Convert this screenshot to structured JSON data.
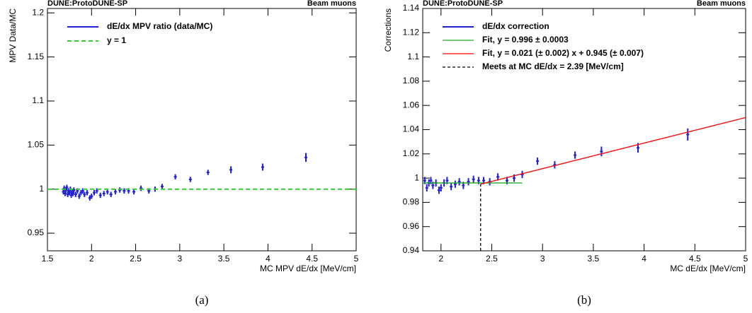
{
  "chart_data": [
    {
      "type": "scatter",
      "label_left": "DUNE:ProtoDUNE-SP",
      "label_right": "Beam muons",
      "x_label": "MC MPV dE/dx [MeV/cm]",
      "y_label": "MPV Data/MC",
      "caption": "(a)",
      "xlim": [
        1.5,
        5
      ],
      "xticks": [
        1.5,
        2,
        2.5,
        3,
        3.5,
        4,
        4.5,
        5
      ],
      "ylim": [
        0.93,
        1.205
      ],
      "yticks": [
        0.95,
        1,
        1.05,
        1.1,
        1.15,
        1.2
      ],
      "series": [
        {
          "name": "dE/dx MPV ratio (data/MC)",
          "color": "#1f1fd6",
          "style": "points",
          "x": [
            1.68,
            1.69,
            1.7,
            1.71,
            1.72,
            1.73,
            1.74,
            1.75,
            1.76,
            1.77,
            1.78,
            1.79,
            1.8,
            1.82,
            1.84,
            1.86,
            1.88,
            1.9,
            1.92,
            1.95,
            1.98,
            2.0,
            2.03,
            2.06,
            2.1,
            2.14,
            2.18,
            2.22,
            2.27,
            2.32,
            2.37,
            2.42,
            2.48,
            2.56,
            2.65,
            2.72,
            2.8,
            2.95,
            3.12,
            3.32,
            3.58,
            3.94,
            4.43
          ],
          "values": [
            0.997,
            1.001,
            0.995,
            0.999,
            1.002,
            0.994,
            0.998,
            0.996,
            1.0,
            0.993,
            0.997,
            0.995,
            0.999,
            0.994,
            0.998,
            0.992,
            0.996,
            0.998,
            0.994,
            0.996,
            0.99,
            0.992,
            0.996,
            0.998,
            0.993,
            0.995,
            0.997,
            0.994,
            0.997,
            0.999,
            0.998,
            0.998,
            0.997,
            1.001,
            0.998,
            1.0,
            1.003,
            1.014,
            1.011,
            1.019,
            1.022,
            1.025,
            1.036
          ],
          "errors": [
            0.003,
            0.003,
            0.003,
            0.003,
            0.003,
            0.003,
            0.003,
            0.003,
            0.003,
            0.003,
            0.003,
            0.003,
            0.003,
            0.003,
            0.003,
            0.003,
            0.003,
            0.003,
            0.003,
            0.003,
            0.003,
            0.003,
            0.003,
            0.003,
            0.003,
            0.003,
            0.003,
            0.003,
            0.003,
            0.003,
            0.003,
            0.003,
            0.003,
            0.003,
            0.003,
            0.003,
            0.003,
            0.003,
            0.003,
            0.003,
            0.004,
            0.004,
            0.005
          ]
        },
        {
          "name": "y = 1",
          "color": "#33cc33",
          "style": "dashed",
          "x": [
            1.5,
            5
          ],
          "values": [
            1,
            1
          ]
        }
      ]
    },
    {
      "type": "scatter",
      "label_left": "DUNE:ProtoDUNE-SP",
      "label_right": "Beam muons",
      "x_label": "MC dE/dx [MeV/cm]",
      "y_label": "Corrections",
      "caption": "(b)",
      "xlim": [
        1.82,
        5
      ],
      "xticks": [
        2,
        2.5,
        3,
        3.5,
        4,
        4.5,
        5
      ],
      "ylim": [
        0.94,
        1.14
      ],
      "yticks": [
        0.94,
        0.96,
        0.98,
        1,
        1.02,
        1.04,
        1.06,
        1.08,
        1.1,
        1.12,
        1.14
      ],
      "series": [
        {
          "name": "dE/dx correction",
          "color": "#1f1fd6",
          "style": "points",
          "x": [
            1.84,
            1.86,
            1.88,
            1.9,
            1.92,
            1.95,
            1.98,
            2.0,
            2.03,
            2.06,
            2.1,
            2.14,
            2.18,
            2.22,
            2.27,
            2.32,
            2.37,
            2.42,
            2.48,
            2.56,
            2.65,
            2.72,
            2.8,
            2.95,
            3.12,
            3.32,
            3.58,
            3.94,
            4.43
          ],
          "values": [
            0.998,
            0.992,
            0.996,
            0.998,
            0.994,
            0.996,
            0.99,
            0.992,
            0.996,
            0.998,
            0.993,
            0.995,
            0.997,
            0.994,
            0.997,
            0.999,
            0.998,
            0.998,
            0.997,
            1.001,
            0.998,
            1.0,
            1.003,
            1.014,
            1.011,
            1.019,
            1.022,
            1.025,
            1.036
          ],
          "errors": [
            0.003,
            0.003,
            0.003,
            0.003,
            0.003,
            0.003,
            0.003,
            0.003,
            0.003,
            0.003,
            0.003,
            0.003,
            0.003,
            0.003,
            0.003,
            0.003,
            0.003,
            0.003,
            0.003,
            0.003,
            0.003,
            0.003,
            0.003,
            0.003,
            0.003,
            0.003,
            0.004,
            0.004,
            0.005
          ]
        },
        {
          "name": "Fit, y = 0.996 ± 0.0003",
          "color": "#22aa22",
          "style": "line",
          "x": [
            1.82,
            2.8
          ],
          "values": [
            0.996,
            0.996
          ]
        },
        {
          "name": "Fit, y = 0.021 (± 0.002) x + 0.945 (± 0.007)",
          "color": "#ff0000",
          "style": "line",
          "x": [
            2.39,
            5
          ],
          "values": [
            0.995,
            1.05
          ]
        },
        {
          "name": "Meets at MC dE/dx = 2.39 [MeV/cm]",
          "color": "#000000",
          "style": "dashed",
          "x": [
            2.39,
            2.39
          ],
          "values": [
            0.94,
            0.995
          ]
        }
      ]
    }
  ]
}
